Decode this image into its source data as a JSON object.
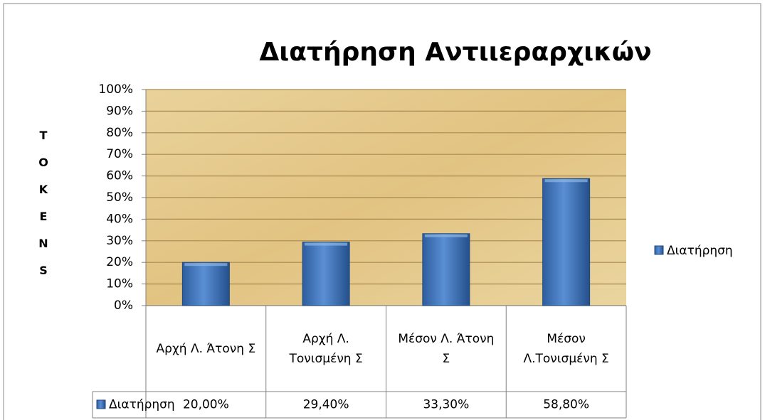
{
  "chart_data": {
    "type": "bar",
    "title": "Διατήρηση Αντιιεραρχικών",
    "y_label": "TOKENS",
    "categories": [
      "Αρχή Λ. Άτονη Σ",
      "Αρχή Λ. Τονισμένη Σ",
      "Μέσον Λ. Άτονη Σ",
      "Μέσον Λ.Τονισμένη Σ"
    ],
    "series": [
      {
        "name": "Διατήρηση",
        "color": "#3a6fb5",
        "values": [
          20,
          29.4,
          33.3,
          58.8
        ],
        "value_labels": [
          "20,00%",
          "29,40%",
          "33,30%",
          "58,80%"
        ]
      }
    ],
    "ylim": [
      0,
      100
    ],
    "yticks": [
      {
        "value": 0,
        "label": "0%"
      },
      {
        "value": 10,
        "label": "10%"
      },
      {
        "value": 20,
        "label": "20%"
      },
      {
        "value": 30,
        "label": "30%"
      },
      {
        "value": 40,
        "label": "40%"
      },
      {
        "value": 50,
        "label": "50%"
      },
      {
        "value": 60,
        "label": "60%"
      },
      {
        "value": 70,
        "label": "70%"
      },
      {
        "value": 80,
        "label": "80%"
      },
      {
        "value": 90,
        "label": "90%"
      },
      {
        "value": 100,
        "label": "100%"
      }
    ],
    "grid": true,
    "legend": "right",
    "data_table": true
  }
}
